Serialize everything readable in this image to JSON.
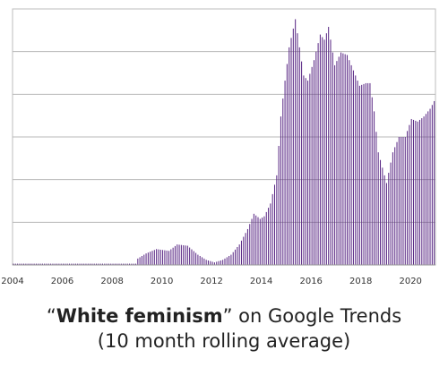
{
  "caption": {
    "open_quote": "“",
    "term": "White feminism",
    "rest": "” on Google Trends",
    "line2": "(10 month rolling average)"
  },
  "chart_data": {
    "type": "bar",
    "title": "“White feminism” on Google Trends (10 month rolling average)",
    "xlabel": "",
    "ylabel": "",
    "x_start": "2004-01",
    "x_end": "2020-12",
    "xlim": [
      "2004-01",
      "2021-01"
    ],
    "ylim": [
      0,
      100
    ],
    "yticks": [
      0,
      16.67,
      33.33,
      50,
      66.67,
      83.33,
      100
    ],
    "ytick_labels_shown": false,
    "xticks": [
      "2004",
      "2006",
      "2008",
      "2010",
      "2012",
      "2014",
      "2016",
      "2018",
      "2020"
    ],
    "grid": "horizontal",
    "legend": "none",
    "colors": {
      "bar": "#5b2a86",
      "grid": "#b8b8b8",
      "axis": "#999999"
    },
    "anchors": [
      [
        "2004-01",
        0.5
      ],
      [
        "2008-12",
        0.5
      ],
      [
        "2009-01",
        2.5
      ],
      [
        "2009-05",
        4.5
      ],
      [
        "2009-10",
        6.2
      ],
      [
        "2010-04",
        5.5
      ],
      [
        "2010-08",
        8.0
      ],
      [
        "2011-01",
        7.5
      ],
      [
        "2011-06",
        4.0
      ],
      [
        "2011-10",
        2.0
      ],
      [
        "2012-02",
        1.0
      ],
      [
        "2012-06",
        2.0
      ],
      [
        "2012-10",
        4.0
      ],
      [
        "2013-02",
        8.0
      ],
      [
        "2013-06",
        14.0
      ],
      [
        "2013-09",
        20.0
      ],
      [
        "2013-12",
        18.0
      ],
      [
        "2014-02",
        19.0
      ],
      [
        "2014-05",
        24.0
      ],
      [
        "2014-08",
        35.0
      ],
      [
        "2014-10",
        58.0
      ],
      [
        "2014-12",
        72.0
      ],
      [
        "2015-02",
        85.0
      ],
      [
        "2015-05",
        96.0
      ],
      [
        "2015-07",
        85.0
      ],
      [
        "2015-09",
        74.0
      ],
      [
        "2015-11",
        72.0
      ],
      [
        "2016-02",
        80.0
      ],
      [
        "2016-05",
        90.0
      ],
      [
        "2016-07",
        88.0
      ],
      [
        "2016-09",
        93.0
      ],
      [
        "2016-12",
        78.0
      ],
      [
        "2017-03",
        83.0
      ],
      [
        "2017-06",
        82.0
      ],
      [
        "2017-09",
        76.0
      ],
      [
        "2017-12",
        70.0
      ],
      [
        "2018-03",
        71.0
      ],
      [
        "2018-05",
        71.0
      ],
      [
        "2018-07",
        60.0
      ],
      [
        "2018-09",
        44.0
      ],
      [
        "2018-11",
        38.0
      ],
      [
        "2019-01",
        32.0
      ],
      [
        "2019-04",
        44.0
      ],
      [
        "2019-07",
        50.0
      ],
      [
        "2019-10",
        50.0
      ],
      [
        "2020-01",
        57.0
      ],
      [
        "2020-04",
        56.0
      ],
      [
        "2020-07",
        58.0
      ],
      [
        "2020-10",
        61.0
      ],
      [
        "2020-12",
        64.0
      ]
    ]
  }
}
